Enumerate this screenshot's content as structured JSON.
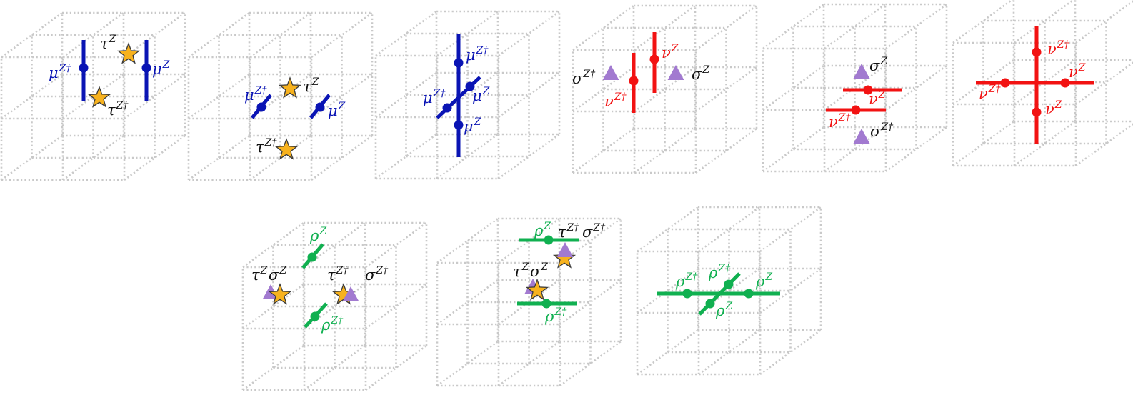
{
  "colors": {
    "blue": "#0a14b4",
    "red": "#f21212",
    "green": "#10b050",
    "black": "#111111",
    "star_fill": "#f7b21e",
    "star_stroke": "#3a3a3a",
    "triangle": "#a27ad0",
    "grid": "#c9c9c9"
  },
  "panels": [
    {
      "id": "p1",
      "labels": [
        {
          "base": "μ",
          "sup": "Z†",
          "color": "blue"
        },
        {
          "base": "τ",
          "sup": "Z",
          "color": "black"
        },
        {
          "base": "μ",
          "sup": "Z",
          "color": "blue"
        },
        {
          "base": "τ",
          "sup": "Z†",
          "color": "black"
        }
      ]
    },
    {
      "id": "p2",
      "labels": [
        {
          "base": "μ",
          "sup": "Z†",
          "color": "blue"
        },
        {
          "base": "τ",
          "sup": "Z",
          "color": "black"
        },
        {
          "base": "μ",
          "sup": "Z",
          "color": "blue"
        },
        {
          "base": "τ",
          "sup": "Z†",
          "color": "black"
        }
      ]
    },
    {
      "id": "p3",
      "labels": [
        {
          "base": "μ",
          "sup": "Z†",
          "color": "blue"
        },
        {
          "base": "μ",
          "sup": "Z†",
          "color": "blue"
        },
        {
          "base": "μ",
          "sup": "Z",
          "color": "blue"
        },
        {
          "base": "μ",
          "sup": "Z",
          "color": "blue"
        }
      ]
    },
    {
      "id": "p4",
      "labels": [
        {
          "base": "σ",
          "sup": "Z†",
          "color": "black"
        },
        {
          "base": "ν",
          "sup": "Z",
          "color": "red"
        },
        {
          "base": "σ",
          "sup": "Z",
          "color": "black"
        },
        {
          "base": "ν",
          "sup": "Z†",
          "color": "red"
        }
      ]
    },
    {
      "id": "p5",
      "labels": [
        {
          "base": "σ",
          "sup": "Z",
          "color": "black"
        },
        {
          "base": "ν",
          "sup": "Z",
          "color": "red"
        },
        {
          "base": "ν",
          "sup": "Z†",
          "color": "red"
        },
        {
          "base": "σ",
          "sup": "Z†",
          "color": "black"
        }
      ]
    },
    {
      "id": "p6",
      "labels": [
        {
          "base": "ν",
          "sup": "Z†",
          "color": "red"
        },
        {
          "base": "ν",
          "sup": "Z",
          "color": "red"
        },
        {
          "base": "ν",
          "sup": "Z†",
          "color": "red"
        },
        {
          "base": "ν",
          "sup": "Z",
          "color": "red"
        }
      ]
    },
    {
      "id": "p7",
      "labels": [
        {
          "base": "ρ",
          "sup": "Z",
          "color": "green"
        },
        {
          "base": "τ",
          "sup": "Z",
          "color": "black"
        },
        {
          "base": "σ",
          "sup": "Z",
          "color": "black"
        },
        {
          "base": "τ",
          "sup": "Z†",
          "color": "black"
        },
        {
          "base": "σ",
          "sup": "Z†",
          "color": "black"
        },
        {
          "base": "ρ",
          "sup": "Z†",
          "color": "green"
        }
      ]
    },
    {
      "id": "p8",
      "labels": [
        {
          "base": "ρ",
          "sup": "Z",
          "color": "green"
        },
        {
          "base": "τ",
          "sup": "Z†",
          "color": "black"
        },
        {
          "base": "σ",
          "sup": "Z†",
          "color": "black"
        },
        {
          "base": "τ",
          "sup": "Z",
          "color": "black"
        },
        {
          "base": "σ",
          "sup": "Z",
          "color": "black"
        },
        {
          "base": "ρ",
          "sup": "Z†",
          "color": "green"
        }
      ]
    },
    {
      "id": "p9",
      "labels": [
        {
          "base": "ρ",
          "sup": "Z†",
          "color": "green"
        },
        {
          "base": "ρ",
          "sup": "Z†",
          "color": "green"
        },
        {
          "base": "ρ",
          "sup": "Z",
          "color": "green"
        },
        {
          "base": "ρ",
          "sup": "Z",
          "color": "green"
        }
      ]
    }
  ]
}
